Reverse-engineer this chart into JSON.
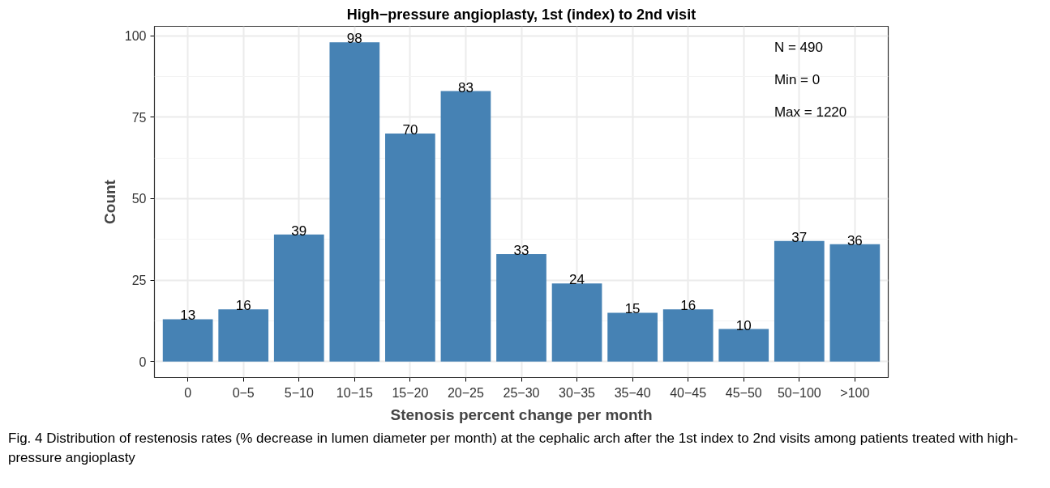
{
  "chart_data": {
    "type": "bar",
    "title": "High−pressure angioplasty, 1st (index) to 2nd visit",
    "xlabel": "Stenosis percent change per month",
    "ylabel": "Count",
    "categories": [
      "0",
      "0−5",
      "5−10",
      "10−15",
      "15−20",
      "20−25",
      "25−30",
      "30−35",
      "35−40",
      "40−45",
      "45−50",
      "50−100",
      ">100"
    ],
    "values": [
      13,
      16,
      39,
      98,
      70,
      83,
      33,
      24,
      15,
      16,
      10,
      37,
      36
    ],
    "color": "#4682b4",
    "data_labels": true,
    "ylim": [
      -4.9,
      102.9
    ],
    "yticks": [
      0,
      25,
      50,
      75,
      100
    ],
    "grid": true,
    "annotations": [
      "N =  490",
      "Min =  0",
      "Max =  1220",
      "Fig. 4  Distribution of restenosis rates (% decrease in lumen diameter per month) at the cephalic arch after the 1st index to 2nd visits among patients treated with high-pressure angioplasty"
    ]
  }
}
